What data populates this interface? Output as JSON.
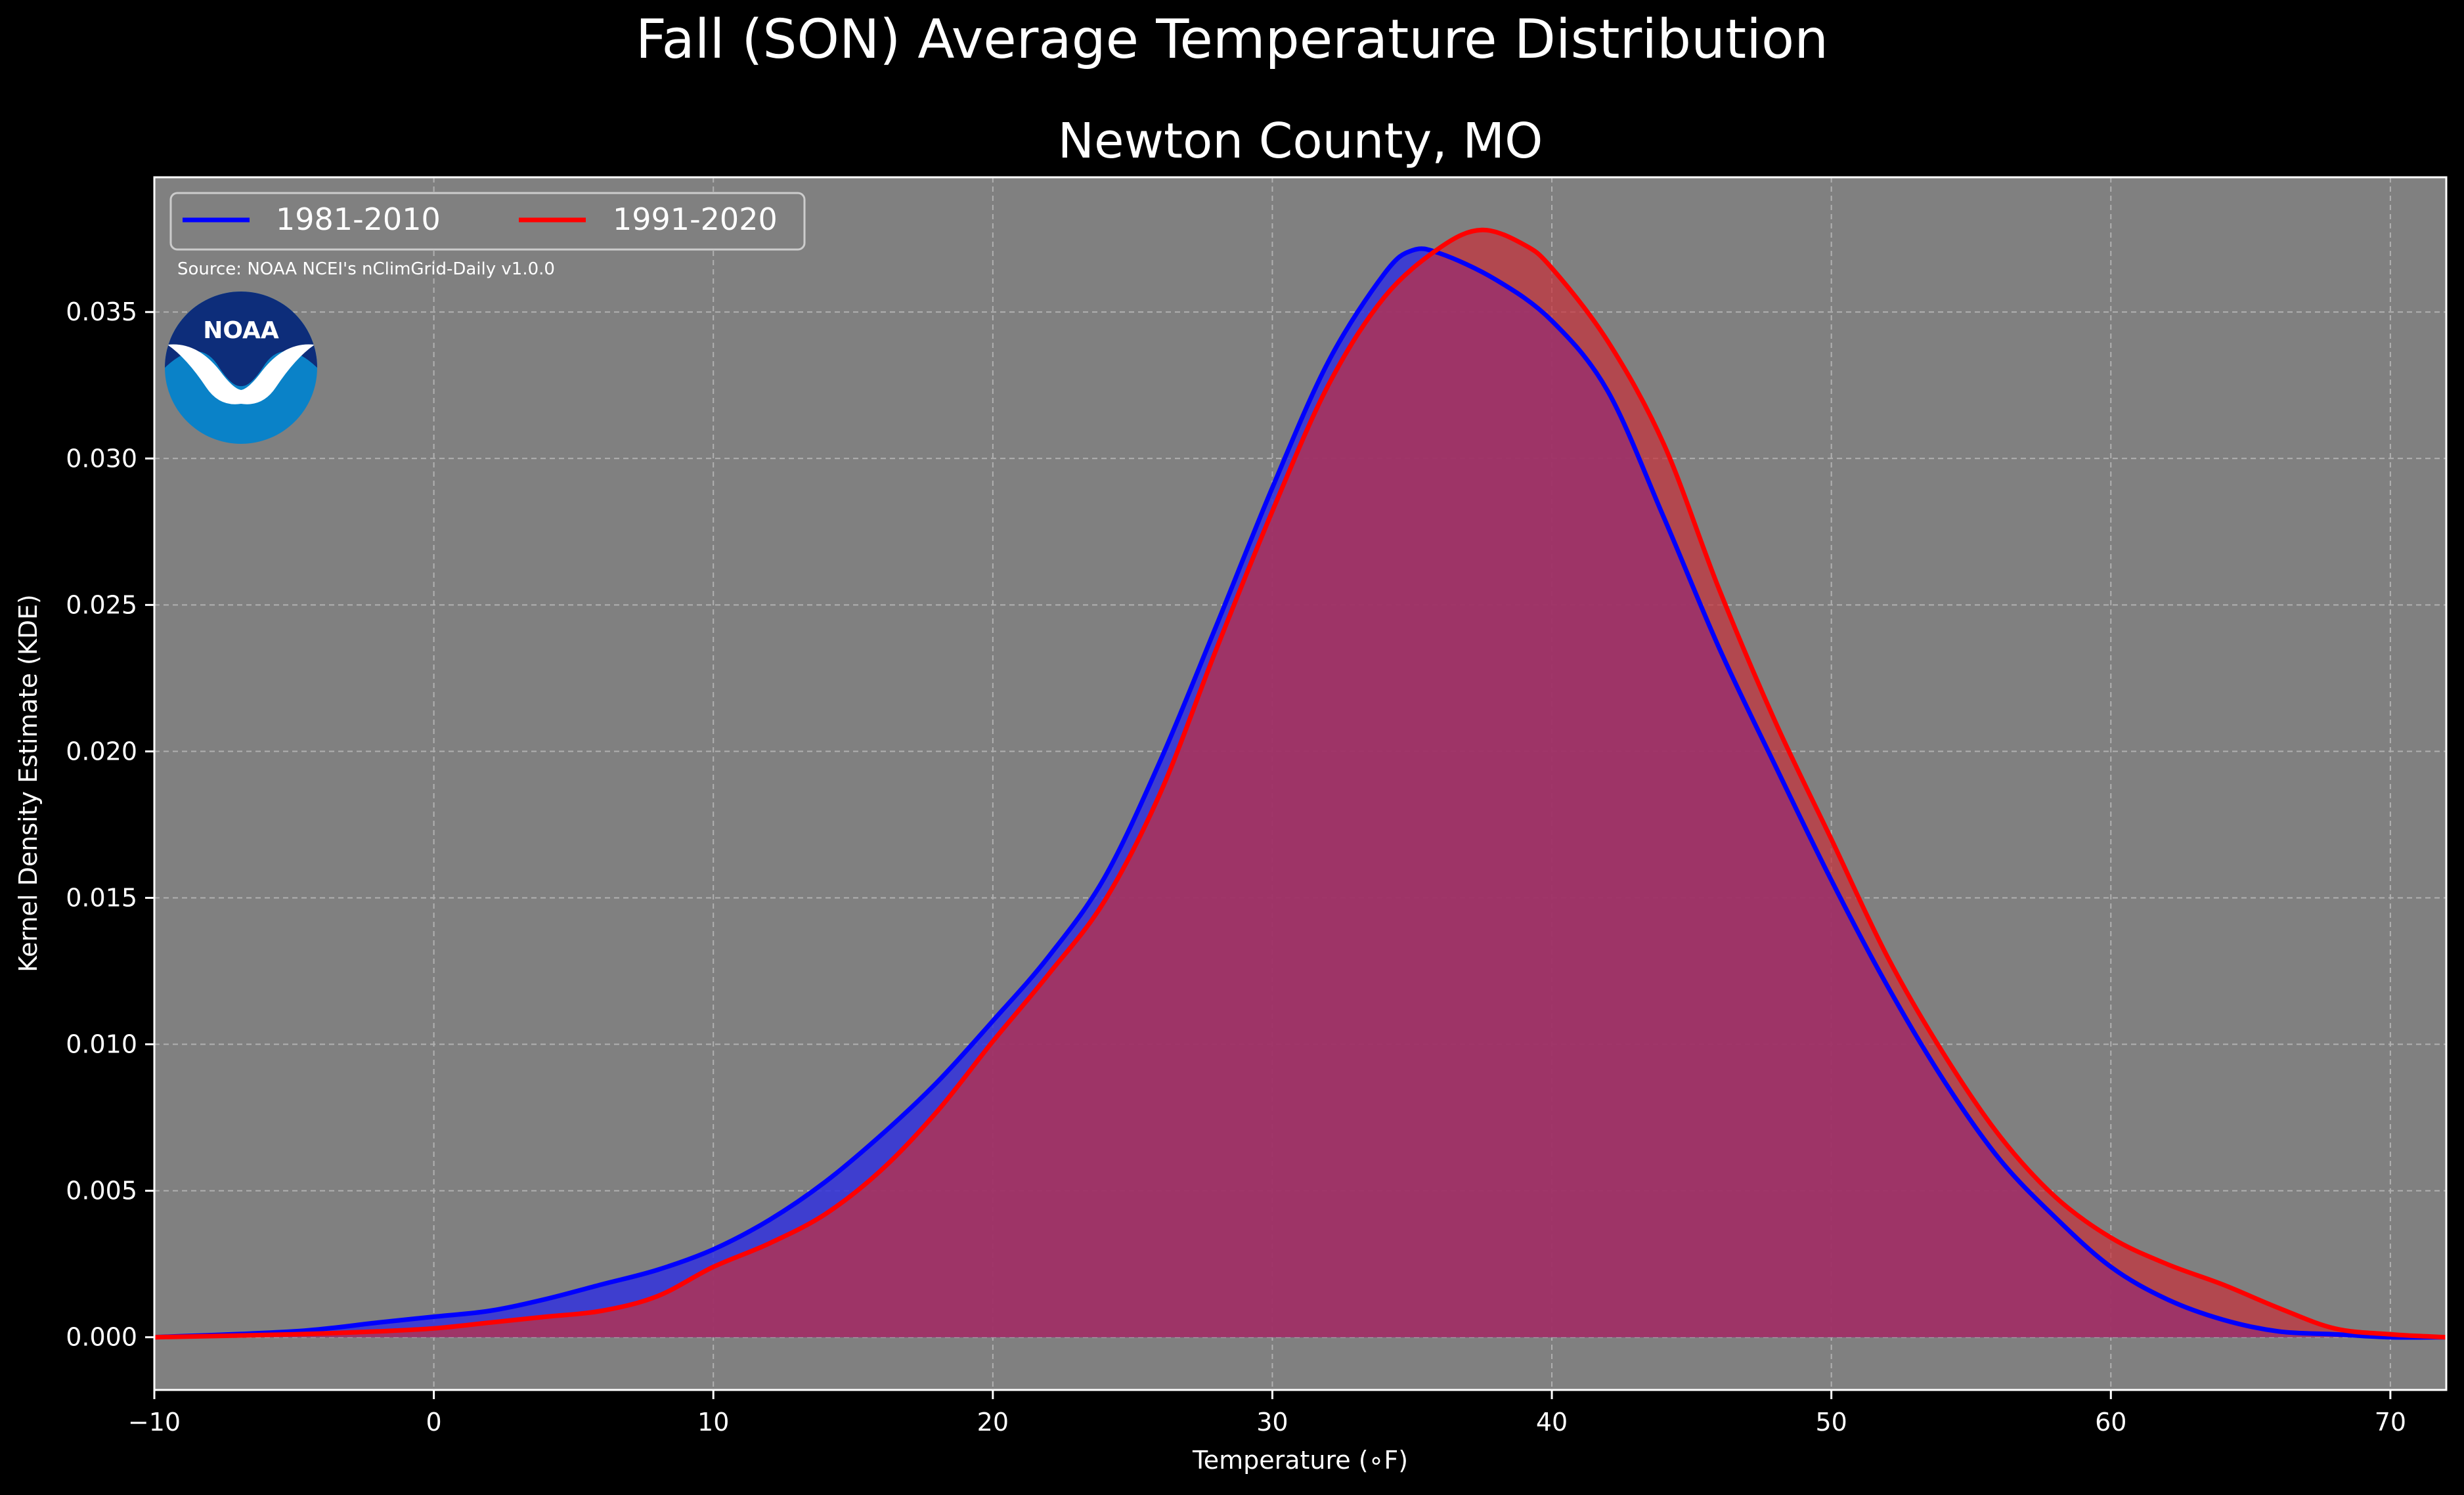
{
  "chart_data": {
    "type": "area",
    "suptitle": "Fall (SON) Average Temperature Distribution",
    "title": "Newton County, MO",
    "xlabel": "Temperature (∘F)",
    "ylabel": "Kernel Density Estimate (KDE)",
    "xlim": [
      -10,
      72
    ],
    "ylim": [
      -0.0018,
      0.0396
    ],
    "xticks": [
      -10,
      0,
      10,
      20,
      30,
      40,
      50,
      60,
      70
    ],
    "yticks": [
      0.0,
      0.005,
      0.01,
      0.015,
      0.02,
      0.025,
      0.03,
      0.035
    ],
    "ytick_labels": [
      "0.000",
      "0.005",
      "0.010",
      "0.015",
      "0.020",
      "0.025",
      "0.030",
      "0.035"
    ],
    "grid": true,
    "legend_position": "top-left",
    "source_note": "Source: NOAA NCEI's nClimGrid-Daily v1.0.0",
    "logo_text": "NOAA",
    "series": [
      {
        "name": "1981-2010",
        "color": "#0000ff",
        "fill": "#3333dd",
        "x": [
          -10,
          -5,
          -2,
          0,
          2,
          4,
          6,
          8,
          10,
          12,
          14,
          16,
          18,
          20,
          22,
          24,
          26,
          28,
          30,
          32,
          34,
          35,
          36,
          38,
          40,
          42,
          44,
          46,
          48,
          50,
          52,
          54,
          56,
          58,
          60,
          62,
          64,
          66,
          68,
          70,
          72
        ],
        "y": [
          0.0,
          0.0002,
          0.0005,
          0.0007,
          0.0009,
          0.0013,
          0.0018,
          0.0023,
          0.003,
          0.004,
          0.0053,
          0.0069,
          0.0087,
          0.0108,
          0.013,
          0.0157,
          0.0197,
          0.0243,
          0.029,
          0.0333,
          0.0363,
          0.0371,
          0.037,
          0.0361,
          0.0347,
          0.0323,
          0.028,
          0.0235,
          0.0195,
          0.0156,
          0.012,
          0.0088,
          0.0061,
          0.0041,
          0.0024,
          0.0013,
          0.0006,
          0.0002,
          0.0001,
          0.0,
          0.0
        ]
      },
      {
        "name": "1991-2020",
        "color": "#ff0000",
        "fill": "#c8303a",
        "x": [
          -10,
          -5,
          -2,
          0,
          2,
          4,
          6,
          8,
          10,
          12,
          14,
          16,
          18,
          20,
          22,
          24,
          26,
          28,
          30,
          32,
          34,
          36,
          37.5,
          39,
          40,
          42,
          44,
          46,
          48,
          50,
          52,
          54,
          56,
          58,
          60,
          62,
          64,
          66,
          68,
          70,
          72
        ],
        "y": [
          0.0,
          0.0001,
          0.0002,
          0.0003,
          0.0005,
          0.0007,
          0.0009,
          0.0014,
          0.0024,
          0.0032,
          0.0042,
          0.0057,
          0.0077,
          0.0101,
          0.0124,
          0.0149,
          0.0186,
          0.0235,
          0.0282,
          0.0325,
          0.0355,
          0.0372,
          0.0378,
          0.0373,
          0.0365,
          0.034,
          0.0305,
          0.0255,
          0.021,
          0.017,
          0.013,
          0.0097,
          0.0069,
          0.0048,
          0.0034,
          0.0025,
          0.0018,
          0.001,
          0.0003,
          0.0001,
          0.0
        ]
      }
    ]
  }
}
